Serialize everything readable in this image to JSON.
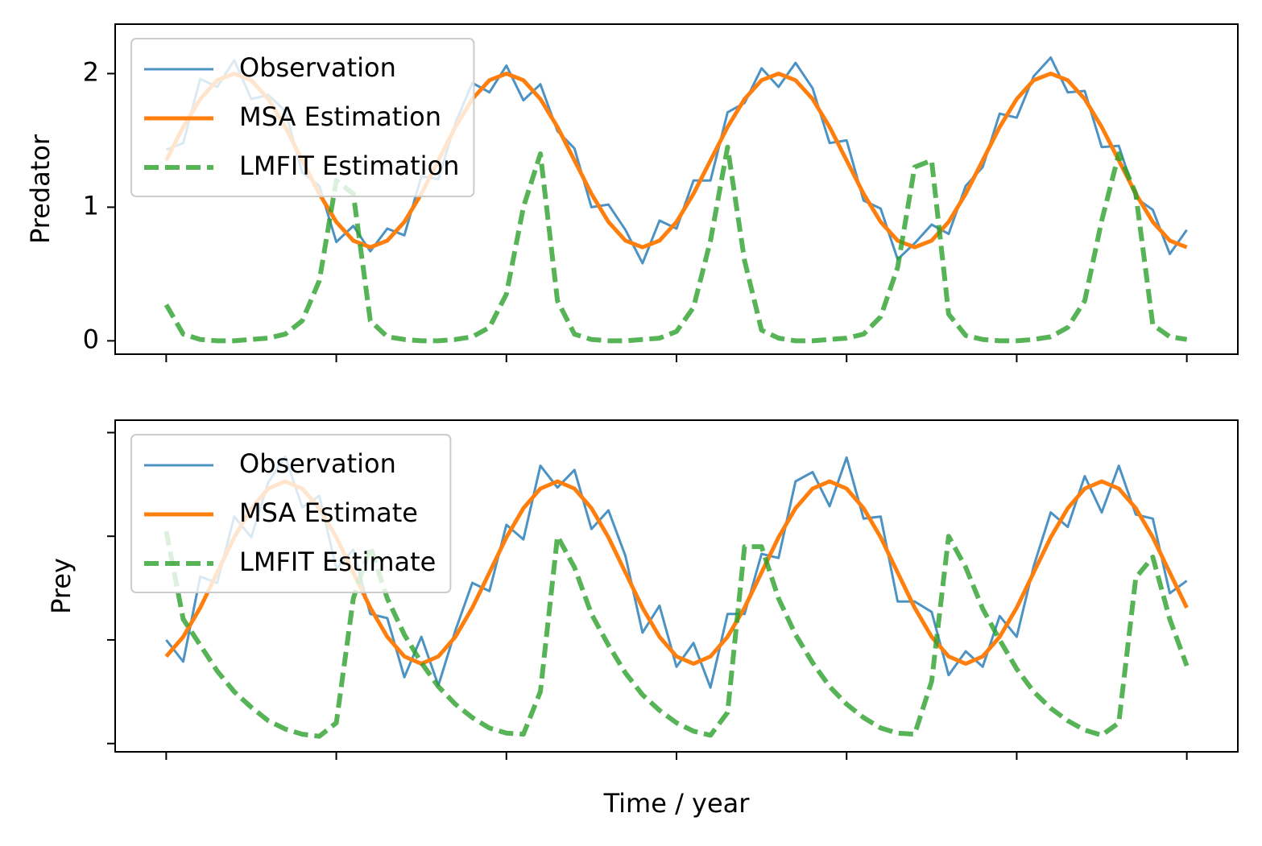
{
  "chart_data": [
    {
      "type": "line",
      "ylabel": "Predator",
      "x": [
        0,
        5,
        10,
        15,
        20,
        25,
        30,
        35,
        40,
        45,
        50,
        55,
        60,
        65,
        70,
        75,
        80,
        85,
        90,
        95,
        100,
        105,
        110,
        115,
        120,
        125,
        130,
        135,
        140,
        145,
        150,
        155,
        160,
        165,
        170,
        175,
        180,
        185,
        190,
        195,
        200,
        205,
        210,
        215,
        220,
        225,
        230,
        235,
        240,
        245,
        250,
        255,
        260,
        265,
        270,
        275,
        280,
        285,
        290,
        295,
        300
      ],
      "xlim": [
        -15,
        315
      ],
      "xticks": [
        0,
        50,
        100,
        150,
        200,
        250,
        300
      ],
      "xtick_labels": false,
      "ylim": [
        -0.1,
        2.37
      ],
      "yticks": [
        0,
        1,
        2
      ],
      "ytick_labels": true,
      "legend": "upper left",
      "series": [
        {
          "name": "Observation",
          "color": "#1f77b4",
          "style": "solid",
          "values": [
            1.43,
            1.48,
            1.96,
            1.9,
            2.1,
            1.81,
            1.84,
            1.72,
            1.26,
            1.16,
            0.74,
            0.86,
            0.67,
            0.84,
            0.79,
            1.23,
            1.21,
            1.63,
            1.93,
            1.86,
            2.06,
            1.8,
            1.92,
            1.57,
            1.44,
            1.0,
            1.02,
            0.83,
            0.58,
            0.9,
            0.84,
            1.2,
            1.2,
            1.71,
            1.78,
            2.04,
            1.9,
            2.08,
            1.89,
            1.48,
            1.5,
            1.05,
            0.99,
            0.61,
            0.73,
            0.87,
            0.8,
            1.16,
            1.3,
            1.7,
            1.67,
            1.98,
            2.12,
            1.86,
            1.87,
            1.45,
            1.46,
            1.07,
            0.98,
            0.65,
            0.83
          ]
        },
        {
          "name": "MSA Estimation",
          "color": "#ff7f0e",
          "style": "solid",
          "values": [
            1.35,
            1.6,
            1.81,
            1.95,
            2.0,
            1.95,
            1.81,
            1.6,
            1.35,
            1.1,
            0.89,
            0.75,
            0.7,
            0.75,
            0.89,
            1.1,
            1.35,
            1.6,
            1.81,
            1.95,
            2.0,
            1.95,
            1.81,
            1.6,
            1.35,
            1.1,
            0.89,
            0.75,
            0.7,
            0.75,
            0.89,
            1.1,
            1.35,
            1.6,
            1.81,
            1.95,
            2.0,
            1.95,
            1.81,
            1.6,
            1.35,
            1.1,
            0.89,
            0.75,
            0.7,
            0.75,
            0.89,
            1.1,
            1.35,
            1.6,
            1.81,
            1.95,
            2.0,
            1.95,
            1.81,
            1.6,
            1.35,
            1.1,
            0.89,
            0.75,
            0.7
          ]
        },
        {
          "name": "LMFIT Estimation",
          "color": "#2ca02c",
          "style": "dashed",
          "values": [
            0.27,
            0.05,
            0.01,
            0.0,
            0.0,
            0.01,
            0.02,
            0.05,
            0.15,
            0.45,
            1.2,
            1.1,
            0.15,
            0.03,
            0.01,
            0.0,
            0.0,
            0.01,
            0.03,
            0.1,
            0.35,
            1.0,
            1.4,
            0.3,
            0.05,
            0.01,
            0.0,
            0.0,
            0.01,
            0.02,
            0.07,
            0.25,
            0.75,
            1.45,
            0.6,
            0.08,
            0.02,
            0.0,
            0.0,
            0.01,
            0.02,
            0.05,
            0.18,
            0.55,
            1.3,
            1.35,
            0.2,
            0.04,
            0.01,
            0.0,
            0.0,
            0.01,
            0.03,
            0.1,
            0.3,
            0.9,
            1.4,
            1.1,
            0.12,
            0.03,
            0.01
          ]
        }
      ]
    },
    {
      "type": "line",
      "ylabel": "Prey",
      "xlabel": "Time / year",
      "x": [
        0,
        5,
        10,
        15,
        20,
        25,
        30,
        35,
        40,
        45,
        50,
        55,
        60,
        65,
        70,
        75,
        80,
        85,
        90,
        95,
        100,
        105,
        110,
        115,
        120,
        125,
        130,
        135,
        140,
        145,
        150,
        155,
        160,
        165,
        170,
        175,
        180,
        185,
        190,
        195,
        200,
        205,
        210,
        215,
        220,
        225,
        230,
        235,
        240,
        245,
        250,
        255,
        260,
        265,
        270,
        275,
        280,
        285,
        290,
        295,
        300
      ],
      "xlim": [
        -15,
        315
      ],
      "xticks": [
        0,
        50,
        100,
        150,
        200,
        250,
        300
      ],
      "xtick_labels": false,
      "ylim": [
        -0.08,
        3.12
      ],
      "yticks": [
        0,
        1,
        2,
        3
      ],
      "ytick_labels": false,
      "legend": "upper left",
      "series": [
        {
          "name": "Observation",
          "color": "#1f77b4",
          "style": "solid",
          "values": [
            1.0,
            0.79,
            1.61,
            1.55,
            2.19,
            1.99,
            2.52,
            2.77,
            2.28,
            2.39,
            1.69,
            1.87,
            1.25,
            1.21,
            0.64,
            1.03,
            0.56,
            1.09,
            1.55,
            1.47,
            2.11,
            1.97,
            2.68,
            2.47,
            2.64,
            2.07,
            2.25,
            1.81,
            1.07,
            1.33,
            0.74,
            0.97,
            0.54,
            1.25,
            1.25,
            1.83,
            1.79,
            2.53,
            2.62,
            2.29,
            2.76,
            2.17,
            2.19,
            1.37,
            1.37,
            1.27,
            0.66,
            0.89,
            0.74,
            1.23,
            1.03,
            1.71,
            2.23,
            2.09,
            2.58,
            2.23,
            2.68,
            2.21,
            2.17,
            1.45,
            1.57
          ]
        },
        {
          "name": "MSA Estimate",
          "color": "#ff7f0e",
          "style": "solid",
          "values": [
            0.84,
            1.03,
            1.31,
            1.65,
            1.99,
            2.27,
            2.46,
            2.53,
            2.46,
            2.27,
            1.99,
            1.65,
            1.31,
            1.03,
            0.84,
            0.77,
            0.84,
            1.03,
            1.31,
            1.65,
            1.99,
            2.27,
            2.46,
            2.53,
            2.46,
            2.27,
            1.99,
            1.65,
            1.31,
            1.03,
            0.84,
            0.77,
            0.84,
            1.03,
            1.31,
            1.65,
            1.99,
            2.27,
            2.46,
            2.53,
            2.46,
            2.27,
            1.99,
            1.65,
            1.31,
            1.03,
            0.84,
            0.77,
            0.84,
            1.03,
            1.31,
            1.65,
            1.99,
            2.27,
            2.46,
            2.53,
            2.46,
            2.27,
            1.99,
            1.65,
            1.31
          ]
        },
        {
          "name": "LMFIT Estimate",
          "color": "#2ca02c",
          "style": "dashed",
          "values": [
            2.05,
            1.2,
            0.95,
            0.7,
            0.5,
            0.35,
            0.22,
            0.14,
            0.09,
            0.07,
            0.2,
            1.4,
            1.9,
            1.4,
            1.05,
            0.78,
            0.55,
            0.38,
            0.25,
            0.15,
            0.1,
            0.09,
            0.5,
            2.0,
            1.7,
            1.25,
            0.95,
            0.68,
            0.47,
            0.32,
            0.2,
            0.12,
            0.08,
            0.3,
            1.9,
            1.9,
            1.4,
            1.05,
            0.78,
            0.55,
            0.38,
            0.25,
            0.15,
            0.1,
            0.09,
            0.6,
            2.0,
            1.7,
            1.3,
            1.0,
            0.72,
            0.5,
            0.34,
            0.22,
            0.13,
            0.08,
            0.2,
            1.6,
            1.8,
            1.2,
            0.75
          ]
        }
      ]
    }
  ]
}
